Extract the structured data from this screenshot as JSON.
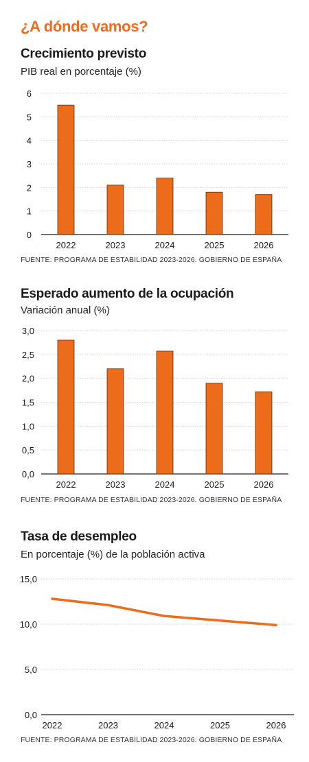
{
  "page": {
    "title": "¿A dónde vamos?"
  },
  "colors": {
    "accent": "#ec6c1c",
    "grid": "#d0d0d0",
    "axis": "#222222",
    "text": "#1a1a1a"
  },
  "charts": [
    {
      "title": "Crecimiento previsto",
      "subtitle": "PIB real en porcentaje (%)",
      "source": "FUENTE: PROGRAMA DE ESTABILIDAD 2023-2026. GOBIERNO DE ESPAÑA"
    },
    {
      "title": "Esperado aumento de la ocupación",
      "subtitle": "Variación anual (%)",
      "source": "FUENTE: PROGRAMA DE ESTABILIDAD 2023-2026. GOBIERNO DE ESPAÑA"
    },
    {
      "title": "Tasa de desempleo",
      "subtitle": "En porcentaje (%) de la población activa",
      "source": "FUENTE: PROGRAMA DE ESTABILIDAD 2023-2026. GOBIERNO DE ESPAÑA"
    }
  ],
  "chart_data": [
    {
      "type": "bar",
      "title": "Crecimiento previsto",
      "subtitle": "PIB real en porcentaje (%)",
      "categories": [
        "2022",
        "2023",
        "2024",
        "2025",
        "2026"
      ],
      "values": [
        5.5,
        2.1,
        2.4,
        1.8,
        1.7
      ],
      "ylim": [
        0,
        6
      ],
      "yticks": [
        "0",
        "1",
        "2",
        "3",
        "4",
        "5",
        "6"
      ],
      "grid": true
    },
    {
      "type": "bar",
      "title": "Esperado aumento de la ocupación",
      "subtitle": "Variación anual (%)",
      "categories": [
        "2022",
        "2023",
        "2024",
        "2025",
        "2026"
      ],
      "values": [
        2.8,
        2.2,
        2.57,
        1.9,
        1.72
      ],
      "ylim": [
        0,
        3
      ],
      "yticks": [
        "0,0",
        "0,5",
        "1,0",
        "1,5",
        "2,0",
        "2,5",
        "3,0"
      ],
      "grid": true
    },
    {
      "type": "line",
      "title": "Tasa de desempleo",
      "subtitle": "En porcentaje (%) de la población activa",
      "categories": [
        "2022",
        "2023",
        "2024",
        "2025",
        "2026"
      ],
      "values": [
        12.8,
        12.1,
        10.9,
        10.4,
        9.9
      ],
      "ylim": [
        0,
        15
      ],
      "yticks": [
        "0,0",
        "5,0",
        "10,0",
        "15,0"
      ],
      "grid": true
    }
  ]
}
